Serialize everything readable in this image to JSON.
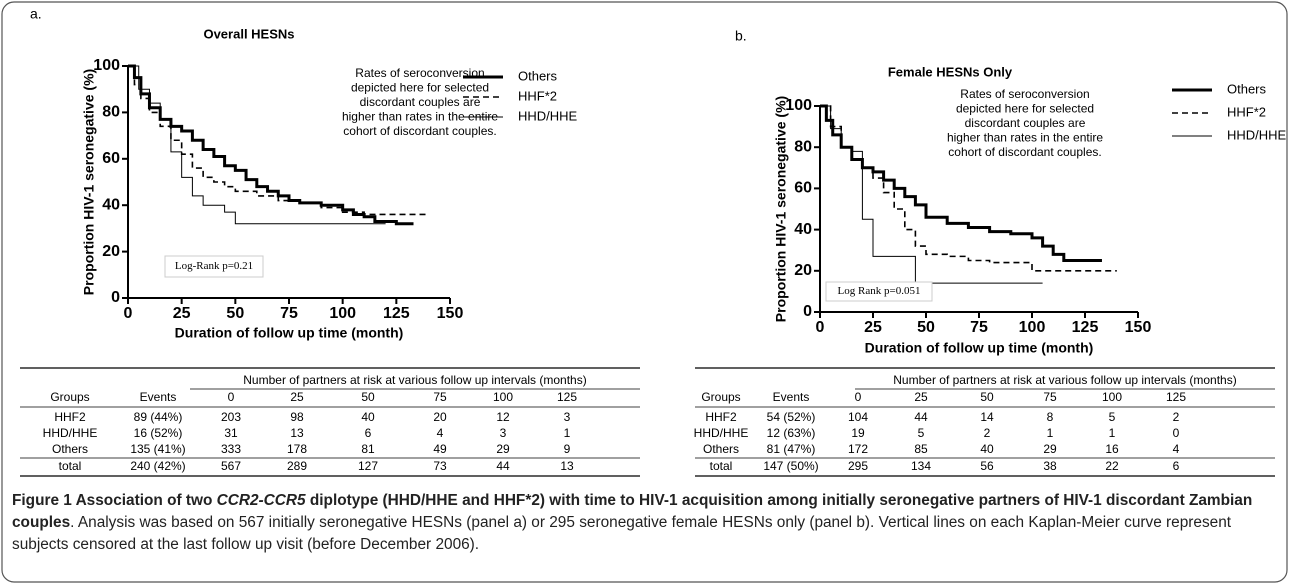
{
  "chart_data": [
    {
      "type": "line",
      "step": true,
      "panel_label": "a.",
      "title": "Overall HESNs",
      "x_label": "Duration of follow up time (month)",
      "y_label": "Proportion HIV-1 seronegative (%)",
      "xlim": [
        0,
        150
      ],
      "xticks": [
        0,
        25,
        50,
        75,
        100,
        125,
        150
      ],
      "ylim": [
        0,
        100
      ],
      "yticks": [
        0,
        20,
        40,
        60,
        80,
        100
      ],
      "annotation": [
        "Rates of seroconversion",
        "depicted here for selected",
        "discordant couples are",
        "higher than rates in the entire",
        "cohort of discordant couples."
      ],
      "test_label": "Log-Rank p=0.21",
      "series": [
        {
          "name": "Others",
          "color": "#000000",
          "line_style": "solid",
          "line_width": 3,
          "x": [
            0,
            3,
            6,
            10,
            15,
            20,
            25,
            30,
            35,
            40,
            45,
            50,
            55,
            60,
            65,
            70,
            75,
            80,
            90,
            100,
            105,
            110,
            115,
            120,
            125,
            133
          ],
          "values": [
            100,
            95,
            88,
            82,
            77,
            74,
            72,
            68,
            64,
            61,
            57,
            55,
            51,
            48,
            46,
            44,
            42,
            41,
            40,
            38,
            36,
            35,
            33,
            33,
            32,
            32
          ]
        },
        {
          "name": "HHF*2",
          "color": "#000000",
          "line_style": "dashed",
          "line_width": 1.6,
          "x": [
            0,
            3,
            6,
            10,
            15,
            20,
            25,
            30,
            35,
            40,
            45,
            50,
            60,
            70,
            80,
            90,
            100,
            110,
            140
          ],
          "values": [
            100,
            92,
            86,
            80,
            74,
            68,
            62,
            56,
            52,
            50,
            48,
            46,
            44,
            42,
            41,
            39,
            37,
            36,
            36
          ]
        },
        {
          "name": "HHD/HHE",
          "color": "#000000",
          "line_style": "solid",
          "line_width": 1,
          "x": [
            0,
            5,
            10,
            15,
            20,
            25,
            30,
            35,
            45,
            50,
            120
          ],
          "values": [
            100,
            90,
            84,
            77,
            63,
            52,
            44,
            40,
            37,
            32,
            32
          ]
        }
      ]
    },
    {
      "type": "line",
      "step": true,
      "panel_label": "b.",
      "title": "Female HESNs Only",
      "x_label": "Duration of follow up time (month)",
      "y_label": "Proportion HIV-1 seronegative (%)",
      "xlim": [
        0,
        150
      ],
      "xticks": [
        0,
        25,
        50,
        75,
        100,
        125,
        150
      ],
      "ylim": [
        0,
        100
      ],
      "yticks": [
        0,
        20,
        40,
        60,
        80,
        100
      ],
      "annotation": [
        "Rates of seroconversion",
        "depicted here for selected",
        "discordant couples are",
        "higher than rates in the entire",
        "cohort of discordant couples."
      ],
      "test_label": "Log Rank p=0.051",
      "series": [
        {
          "name": "Others",
          "color": "#000000",
          "line_style": "solid",
          "line_width": 3,
          "x": [
            0,
            3,
            6,
            10,
            15,
            20,
            25,
            30,
            35,
            40,
            45,
            50,
            60,
            70,
            80,
            90,
            100,
            105,
            110,
            115,
            133
          ],
          "values": [
            100,
            93,
            86,
            80,
            74,
            70,
            68,
            64,
            60,
            56,
            52,
            46,
            43,
            41,
            39,
            38,
            36,
            32,
            28,
            25,
            25
          ]
        },
        {
          "name": "HHF*2",
          "color": "#000000",
          "line_style": "dashed",
          "line_width": 1.6,
          "x": [
            0,
            5,
            10,
            15,
            20,
            25,
            30,
            35,
            40,
            45,
            50,
            60,
            70,
            80,
            100,
            140
          ],
          "values": [
            100,
            90,
            80,
            74,
            70,
            65,
            58,
            50,
            40,
            32,
            28,
            27,
            25,
            24,
            20,
            20
          ]
        },
        {
          "name": "HHD/HHE",
          "color": "#000000",
          "line_style": "solid",
          "line_width": 1,
          "x": [
            0,
            5,
            10,
            15,
            20,
            25,
            45,
            105
          ],
          "values": [
            100,
            89,
            80,
            78,
            45,
            27,
            14,
            14
          ]
        }
      ]
    }
  ],
  "tables": [
    {
      "header": "Number of partners at risk at various follow up intervals (months)",
      "columns": [
        "Groups",
        "Events",
        "0",
        "25",
        "50",
        "75",
        "100",
        "125"
      ],
      "rows": [
        [
          "HHF2",
          "89 (44%)",
          203,
          98,
          40,
          20,
          12,
          3
        ],
        [
          "HHD/HHE",
          "16 (52%)",
          31,
          13,
          6,
          4,
          3,
          1
        ],
        [
          "Others",
          "135 (41%)",
          333,
          178,
          81,
          49,
          29,
          9
        ],
        [
          "total",
          "240 (42%)",
          567,
          289,
          127,
          73,
          44,
          13
        ]
      ]
    },
    {
      "header": "Number of partners at risk at various follow up intervals (months)",
      "columns": [
        "Groups",
        "Events",
        "0",
        "25",
        "50",
        "75",
        "100",
        "125"
      ],
      "rows": [
        [
          "HHF2",
          "54 (52%)",
          104,
          44,
          14,
          8,
          5,
          2
        ],
        [
          "HHD/HHE",
          "12 (63%)",
          19,
          5,
          2,
          1,
          1,
          0
        ],
        [
          "Others",
          "81 (47%)",
          172,
          85,
          40,
          29,
          16,
          4
        ],
        [
          "total",
          "147 (50%)",
          295,
          134,
          56,
          38,
          22,
          6
        ]
      ]
    }
  ],
  "caption": {
    "title": [
      "Figure 1 Association of two ",
      "CCR2-CCR5",
      " diplotype (HHD/HHE and HHF*2) with time to HIV-1 acquisition among initially seronegative partners of HIV-1 discordant Zambian couples"
    ],
    "body": ". Analysis was based on 567 initially seronegative HESNs (panel a) or 295 seronegative female HESNs only (panel b). Vertical lines on each Kaplan-Meier curve represent subjects censored at the last follow up visit (before December 2006)."
  }
}
